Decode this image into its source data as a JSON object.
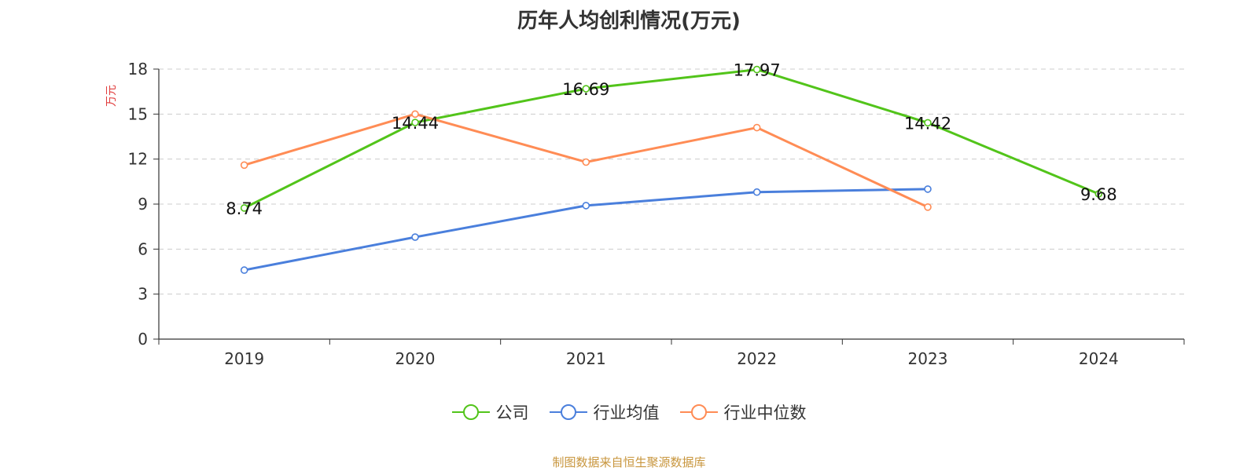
{
  "chart_data": {
    "type": "line",
    "title": "历年人均创利情况(万元)",
    "ylabel": "万元",
    "categories": [
      "2019",
      "2020",
      "2021",
      "2022",
      "2023",
      "2024"
    ],
    "ylim": [
      0,
      18
    ],
    "yticks": [
      0,
      3,
      6,
      9,
      12,
      15,
      18
    ],
    "grid": true,
    "legend_position": "bottom",
    "series": [
      {
        "name": "公司",
        "color": "#52c41a",
        "values": [
          8.74,
          14.44,
          16.69,
          17.97,
          14.42,
          9.68
        ],
        "labels": [
          "8.74",
          "14.44",
          "16.69",
          "17.97",
          "14.42",
          "9.68"
        ]
      },
      {
        "name": "行业均值",
        "color": "#4a7fdc",
        "values": [
          4.6,
          6.8,
          8.9,
          9.8,
          10.0,
          null
        ]
      },
      {
        "name": "行业中位数",
        "color": "#ff8c55",
        "values": [
          11.6,
          15.0,
          11.8,
          14.1,
          8.8,
          null
        ]
      }
    ]
  },
  "source_text": "制图数据来自恒生聚源数据库",
  "colors": {
    "source": "#c8963e",
    "ylabel": "#e03c3c",
    "axis": "#333333",
    "grid": "#cccccc"
  }
}
